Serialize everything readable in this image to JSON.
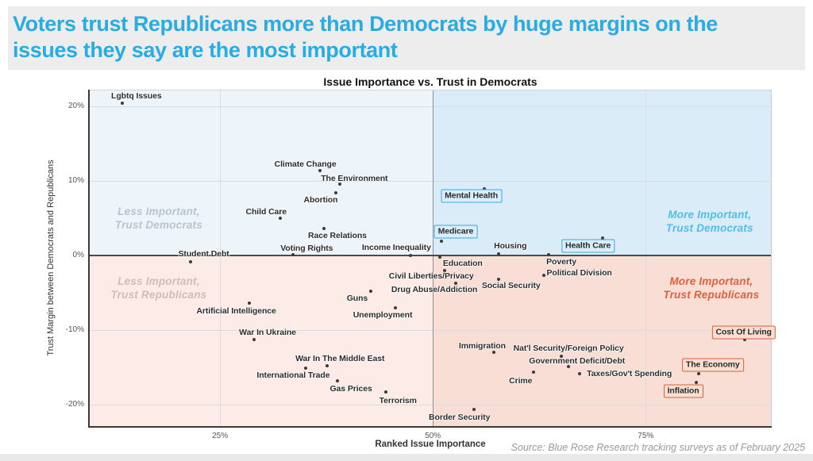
{
  "header": {
    "title_lines": [
      "Voters trust Republicans more than Democrats by huge margins on the",
      "issues they say are the most important"
    ]
  },
  "source": "Source: Blue Rose Research tracking surveys as of February 2025",
  "chart_data": {
    "type": "scatter",
    "title": "Issue Importance vs. Trust in Democrats",
    "xlabel": "Ranked Issue Importance",
    "ylabel": "Trust Margin between Democrats and Republicans",
    "xlim": [
      9.6,
      89.8
    ],
    "ylim": [
      -23,
      22.2
    ],
    "x_unit": "%",
    "y_unit": "%",
    "grid": true,
    "xticks": [
      {
        "v": 25,
        "label": "25%"
      },
      {
        "v": 50,
        "label": "50%"
      },
      {
        "v": 75,
        "label": "75%"
      }
    ],
    "yticks": [
      {
        "v": 20,
        "label": "20%"
      },
      {
        "v": 10,
        "label": "10%"
      },
      {
        "v": 0,
        "label": "0%"
      },
      {
        "v": -10,
        "label": "-10%"
      },
      {
        "v": -20,
        "label": "-20%"
      }
    ],
    "split": {
      "x": 50,
      "y": 0
    },
    "quadrants": [
      {
        "position": "top-left",
        "name": "less-important-trust-democrats",
        "lines": [
          "Less Important,",
          "Trust Democrats"
        ],
        "bg": "#edf4fa",
        "text_color": "#b9c4cf",
        "label_at": [
          17.8,
          5.0
        ]
      },
      {
        "position": "top-right",
        "name": "more-important-trust-democrats",
        "lines": [
          "More Important,",
          "Trust Democrats"
        ],
        "bg": "#daecf8",
        "text_color": "#4fbeec",
        "label_at": [
          82.5,
          4.5
        ]
      },
      {
        "position": "bottom-left",
        "name": "less-important-trust-republicans",
        "lines": [
          "Less Important,",
          "Trust Republicans"
        ],
        "bg": "#fcebe6",
        "text_color": "#cabfbd",
        "label_at": [
          17.8,
          -4.4
        ]
      },
      {
        "position": "bottom-right",
        "name": "more-important-trust-republicans",
        "lines": [
          "More Important,",
          "Trust Republicans"
        ],
        "bg": "#f9ded6",
        "text_color": "#e2603b",
        "label_at": [
          82.7,
          -4.4
        ]
      }
    ],
    "box_styles": {
      "blue": {
        "border": "#3fa8dd",
        "bg": "#d9edfa"
      },
      "orange": {
        "border": "#d9603a",
        "bg": "#f9ded4"
      }
    },
    "colors": {
      "dot": "#3b3b3b",
      "grid": "#d9dde2",
      "zero_line": "#4a4a4a",
      "divider": "#8b9299",
      "accent_blue": "#29abe3"
    },
    "points": [
      {
        "label": "Lgbtq Issues",
        "x": 13.5,
        "y": 20.4,
        "lp": [
          18,
          -9
        ]
      },
      {
        "label": "Climate Change",
        "x": 36.7,
        "y": 11.4,
        "lp": [
          -18,
          -8
        ]
      },
      {
        "label": "The Environment",
        "x": 39.1,
        "y": 9.5,
        "lp": [
          18,
          -7
        ]
      },
      {
        "label": "Abortion",
        "x": 38.6,
        "y": 8.4,
        "lp": [
          -19,
          9
        ]
      },
      {
        "label": "Child Care",
        "x": 32.1,
        "y": 5.0,
        "lp": [
          -18,
          -8
        ]
      },
      {
        "label": "Race Relations",
        "x": 37.2,
        "y": 3.6,
        "lp": [
          17,
          9
        ]
      },
      {
        "label": "Voting Rights",
        "x": 33.6,
        "y": 0.1,
        "lp": [
          17,
          -8
        ]
      },
      {
        "label": "Income Inequality",
        "x": 47.4,
        "y": 0.0,
        "lp": [
          -18,
          -10
        ]
      },
      {
        "label": "Student Debt",
        "x": 21.5,
        "y": -0.9,
        "lp": [
          17,
          -10
        ]
      },
      {
        "label": "Mental Health",
        "x": 56.0,
        "y": 8.9,
        "lp": [
          -16,
          9
        ],
        "box": "blue"
      },
      {
        "label": "Medicare",
        "x": 51.0,
        "y": 1.9,
        "lp": [
          18,
          -12
        ],
        "box": "blue"
      },
      {
        "label": "Housing",
        "x": 57.7,
        "y": 0.2,
        "lp": [
          15,
          -10
        ]
      },
      {
        "label": "Health Care",
        "x": 69.9,
        "y": 2.3,
        "lp": [
          -18,
          10
        ],
        "box": "blue"
      },
      {
        "label": "Poverty",
        "x": 63.6,
        "y": 0.1,
        "lp": [
          16,
          9
        ]
      },
      {
        "label": "Education",
        "x": 50.8,
        "y": -0.2,
        "lp": [
          29,
          8
        ]
      },
      {
        "label": "Civil Liberties/Privacy",
        "x": 51.4,
        "y": -2.0,
        "lp": [
          -17,
          7
        ]
      },
      {
        "label": "Drug Abuse/Addiction",
        "x": 52.7,
        "y": -3.8,
        "lp": [
          -27,
          8
        ]
      },
      {
        "label": "Social Security",
        "x": 57.7,
        "y": -3.2,
        "lp": [
          16,
          8
        ]
      },
      {
        "label": "Political Division",
        "x": 63.0,
        "y": -2.7,
        "lp": [
          45,
          -3
        ]
      },
      {
        "label": "Artificial Intelligence",
        "x": 28.4,
        "y": -6.4,
        "lp": [
          -16,
          10
        ]
      },
      {
        "label": "Guns",
        "x": 42.7,
        "y": -4.8,
        "lp": [
          -17,
          9
        ]
      },
      {
        "label": "Unemployment",
        "x": 45.6,
        "y": -7.1,
        "lp": [
          -16,
          9
        ]
      },
      {
        "label": "War In Ukraine",
        "x": 29.0,
        "y": -11.3,
        "lp": [
          17,
          -9
        ]
      },
      {
        "label": "Immigration",
        "x": 57.2,
        "y": -13.0,
        "lp": [
          -15,
          -8
        ]
      },
      {
        "label": "Nat'l Security/Foreign Policy",
        "x": 65.1,
        "y": -13.5,
        "lp": [
          9,
          -10
        ]
      },
      {
        "label": "Government Deficit/Debt",
        "x": 65.9,
        "y": -14.9,
        "lp": [
          11,
          -7
        ]
      },
      {
        "label": "War In The Middle East",
        "x": 37.6,
        "y": -14.8,
        "lp": [
          16,
          -9
        ]
      },
      {
        "label": "International Trade",
        "x": 35.1,
        "y": -15.1,
        "lp": [
          -16,
          9
        ]
      },
      {
        "label": "Taxes/Gov't Spending",
        "x": 67.2,
        "y": -15.9,
        "lp": [
          63,
          0
        ]
      },
      {
        "label": "Crime",
        "x": 61.8,
        "y": -15.7,
        "lp": [
          -16,
          11
        ]
      },
      {
        "label": "Gas Prices",
        "x": 38.8,
        "y": -16.8,
        "lp": [
          17,
          10
        ]
      },
      {
        "label": "Terrorism",
        "x": 44.5,
        "y": -18.3,
        "lp": [
          15,
          11
        ]
      },
      {
        "label": "Border Security",
        "x": 54.8,
        "y": -20.7,
        "lp": [
          -18,
          10
        ]
      },
      {
        "label": "Cost Of Living",
        "x": 86.6,
        "y": -11.3,
        "lp": [
          -1,
          -9
        ],
        "box": "orange"
      },
      {
        "label": "The Economy",
        "x": 81.2,
        "y": -15.9,
        "lp": [
          18,
          -11
        ],
        "box": "orange"
      },
      {
        "label": "Inflation",
        "x": 80.9,
        "y": -17.0,
        "lp": [
          -16,
          11
        ],
        "box": "orange"
      }
    ]
  }
}
